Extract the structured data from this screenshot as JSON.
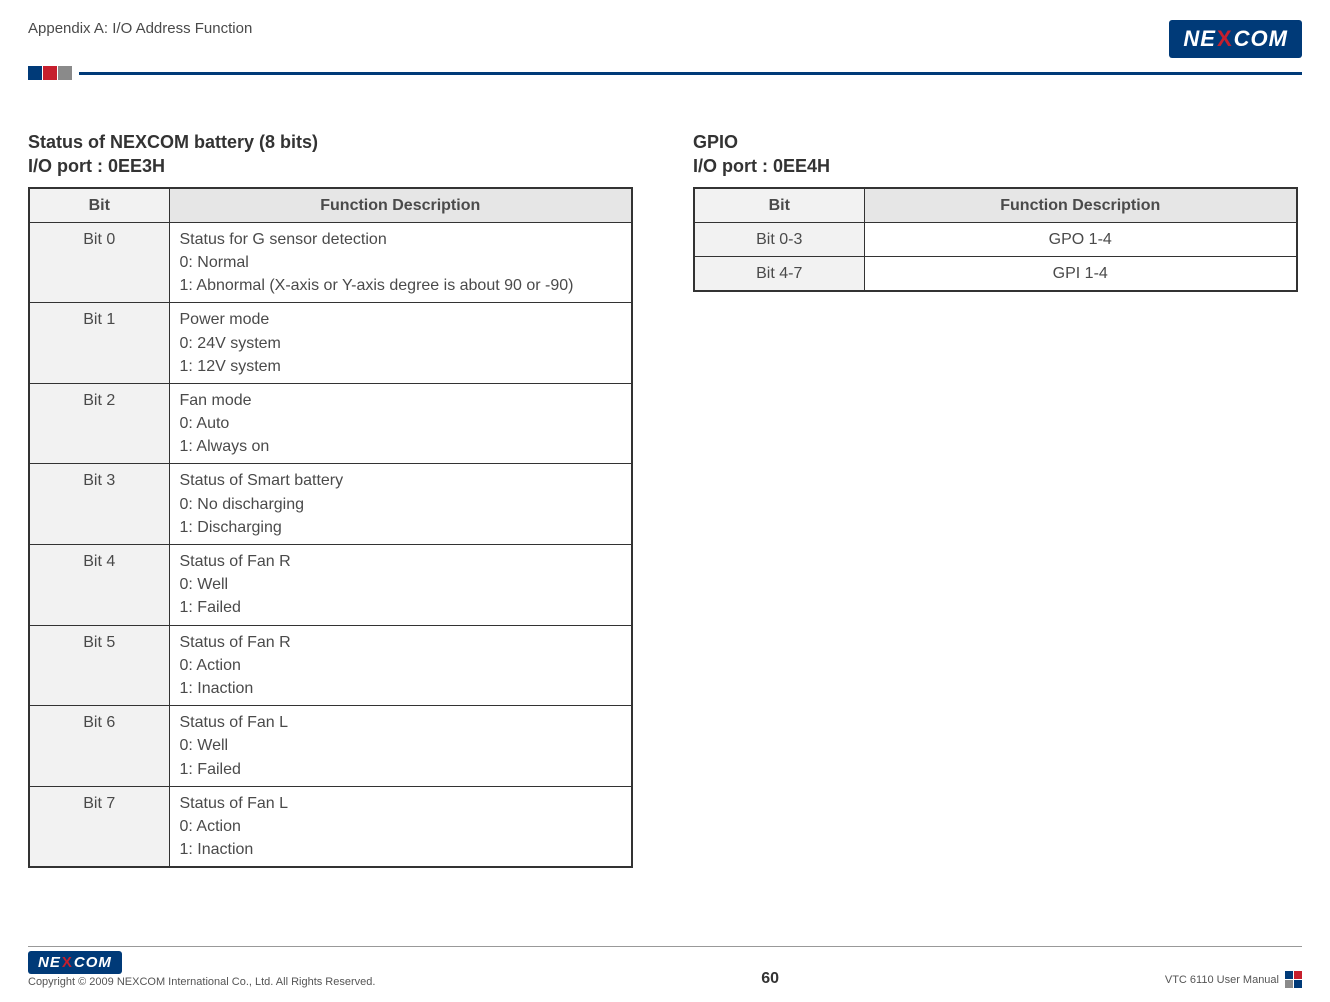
{
  "header": {
    "appendix": "Appendix A: I/O Address Function",
    "brand": "NEXCOM"
  },
  "leftSection": {
    "title1": "Status of NEXCOM battery (8 bits)",
    "title2": "I/O port : 0EE3H",
    "headers": {
      "bit": "Bit",
      "desc": "Function Description"
    },
    "rows": [
      {
        "bit": "Bit 0",
        "desc": "Status for G sensor detection\n0: Normal\n1: Abnormal (X-axis or Y-axis degree is about 90 or -90)"
      },
      {
        "bit": "Bit 1",
        "desc": "Power mode\n0: 24V system\n1: 12V system"
      },
      {
        "bit": "Bit 2",
        "desc": "Fan mode\n0: Auto\n1: Always on"
      },
      {
        "bit": "Bit 3",
        "desc": "Status of Smart battery\n0: No discharging\n1: Discharging"
      },
      {
        "bit": "Bit 4",
        "desc": "Status of Fan R\n0: Well\n1: Failed"
      },
      {
        "bit": "Bit 5",
        "desc": "Status of Fan R\n0: Action\n1: Inaction"
      },
      {
        "bit": "Bit 6",
        "desc": "Status of Fan L\n0: Well\n1: Failed"
      },
      {
        "bit": "Bit 7",
        "desc": "Status of Fan L\n0: Action\n1: Inaction"
      }
    ]
  },
  "rightSection": {
    "title1": "GPIO",
    "title2": "I/O port : 0EE4H",
    "headers": {
      "bit": "Bit",
      "desc": "Function Description"
    },
    "rows": [
      {
        "bit": "Bit 0-3",
        "desc": "GPO 1-4"
      },
      {
        "bit": "Bit 4-7",
        "desc": "GPI 1-4"
      }
    ]
  },
  "footer": {
    "copyright": "Copyright © 2009 NEXCOM International Co., Ltd. All Rights Reserved.",
    "pageNum": "60",
    "manual": "VTC 6110 User Manual"
  },
  "styling": {
    "brand_navy": "#003a78",
    "brand_red": "#c61f2d",
    "brand_grey": "#8a8a8a",
    "text_color": "#4a4a4a",
    "table_border": "#333333",
    "th_bg": "#e6e6e6",
    "bitcol_bg": "#f2f2f2",
    "body_fontsize_pt": 12,
    "title_fontsize_pt": 13.5
  }
}
